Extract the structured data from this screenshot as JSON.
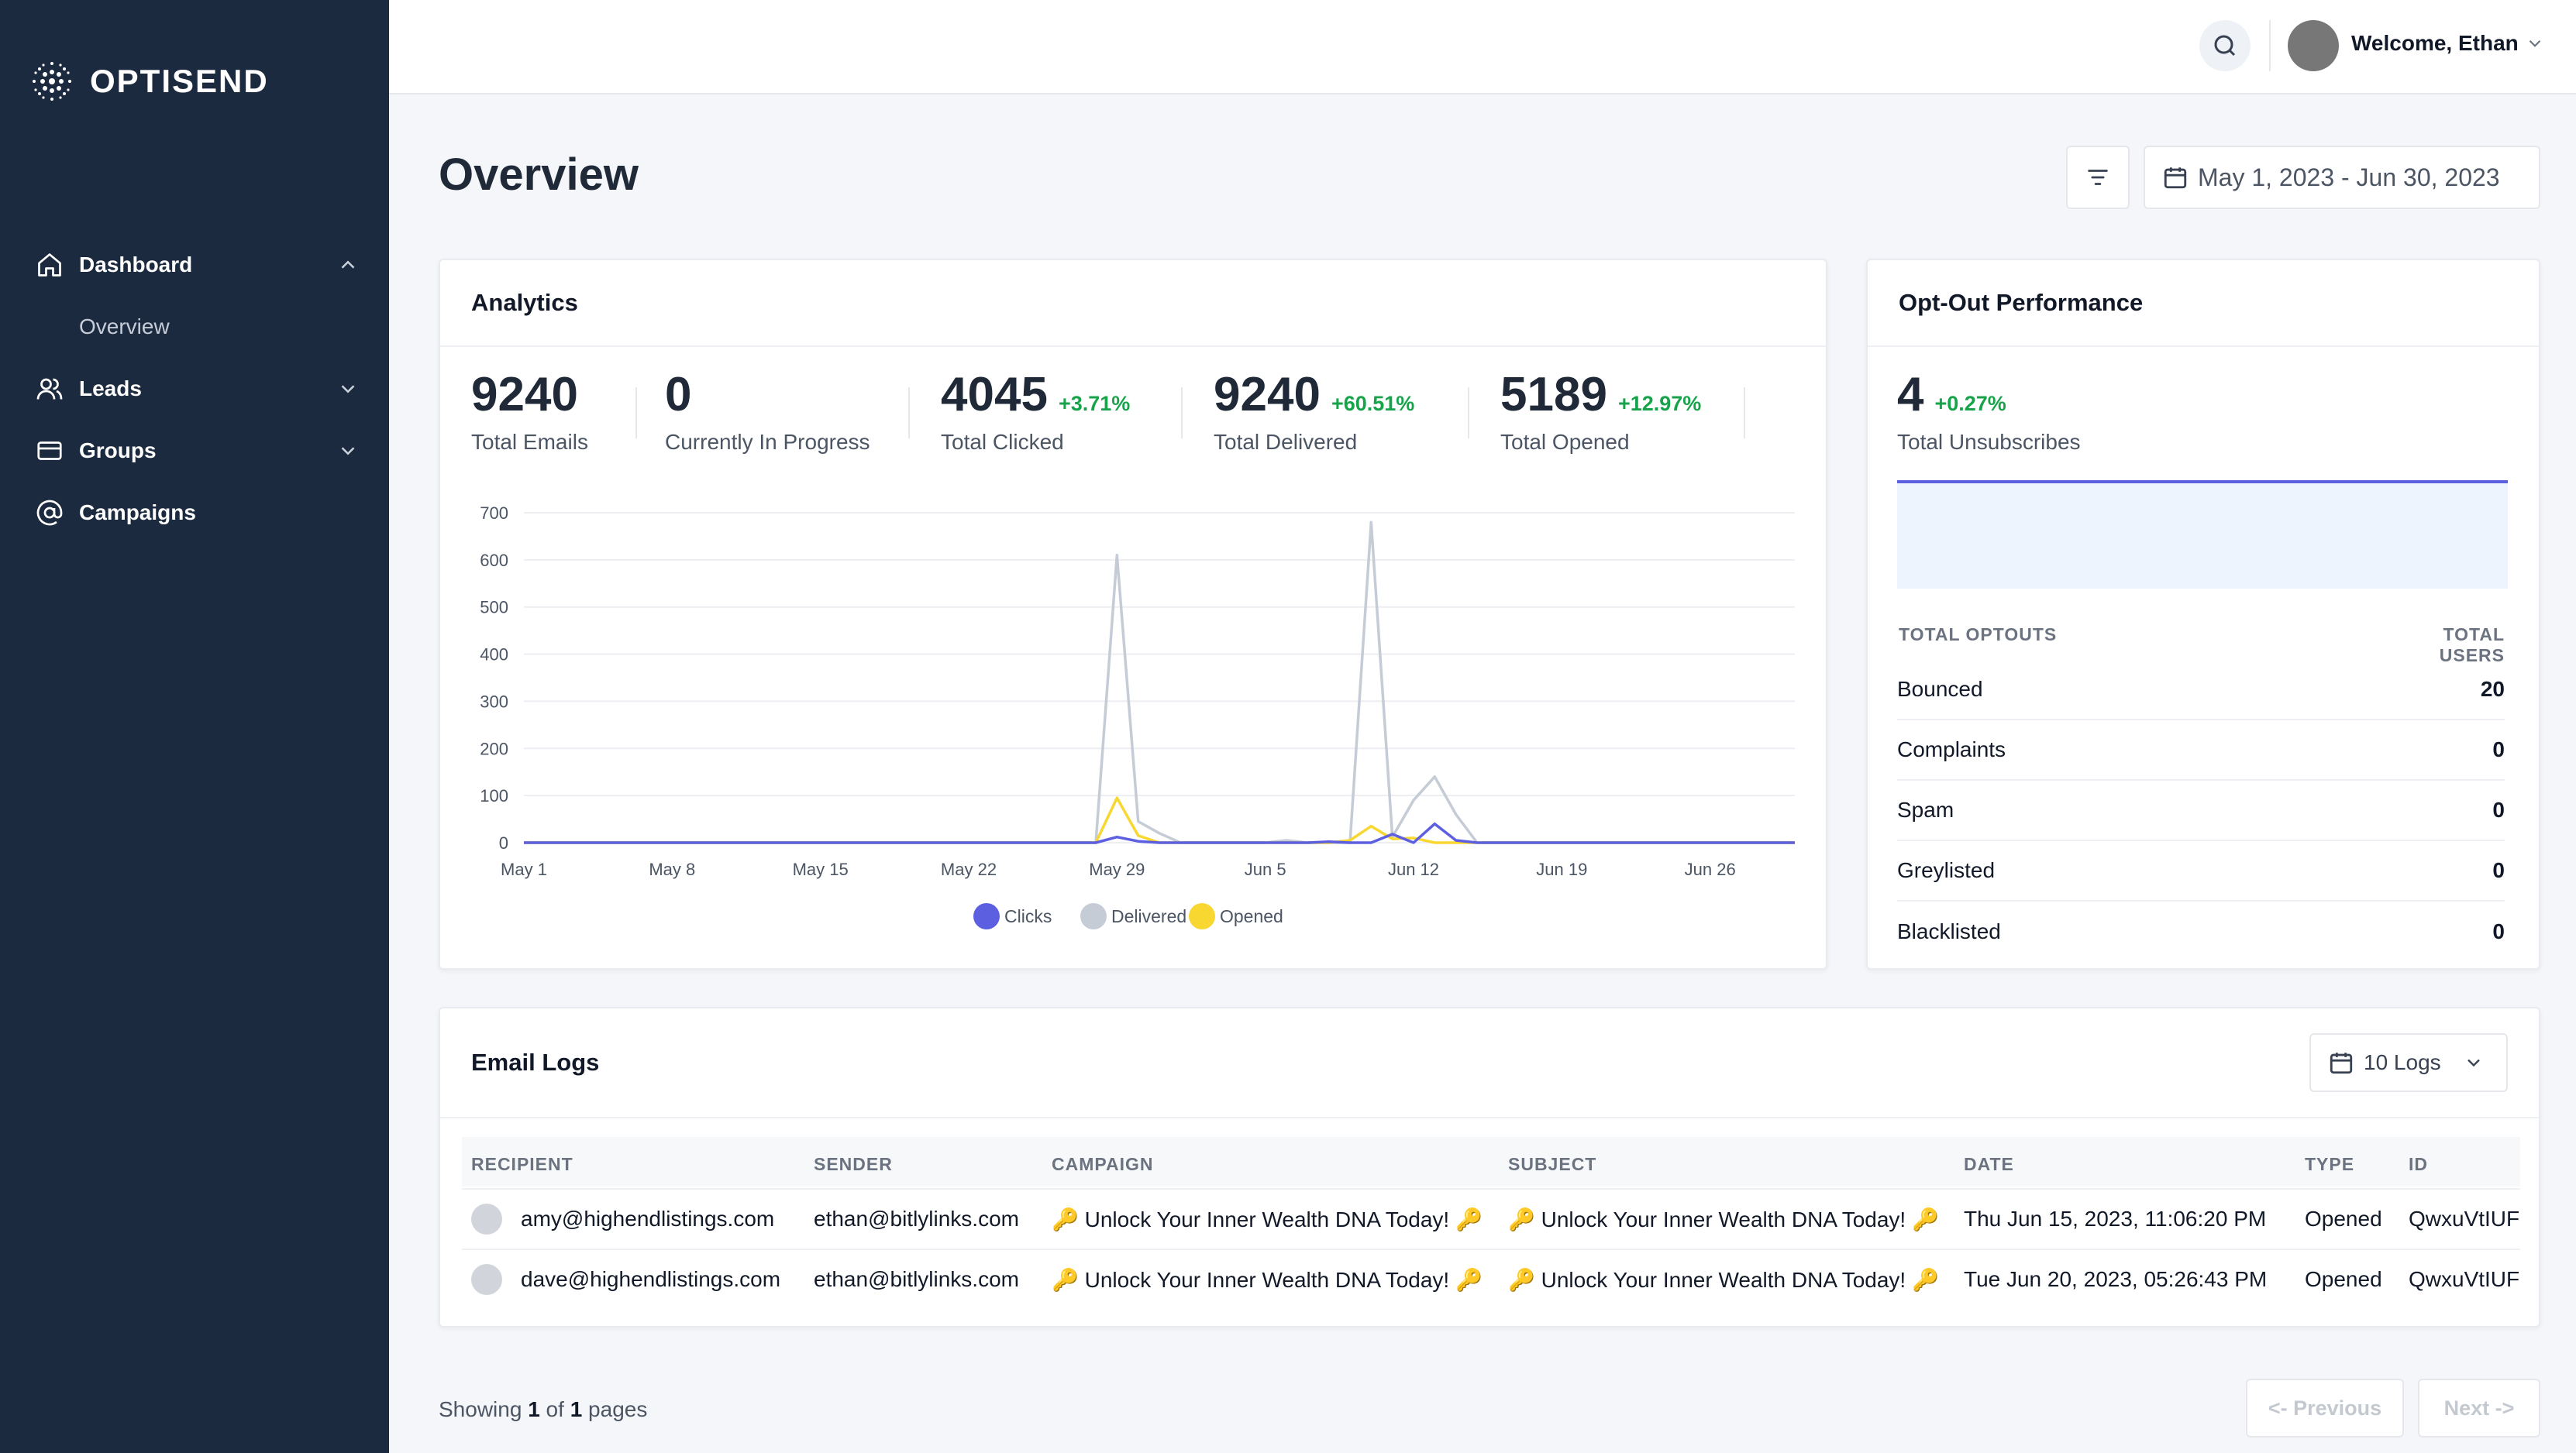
{
  "app": {
    "name": "OPTISEND"
  },
  "sidebar": {
    "items": [
      {
        "label": "Dashboard",
        "icon": "home-icon"
      },
      {
        "label": "Leads",
        "icon": "users-icon"
      },
      {
        "label": "Groups",
        "icon": "card-icon"
      },
      {
        "label": "Campaigns",
        "icon": "at-icon"
      }
    ],
    "sub_overview": "Overview"
  },
  "header": {
    "welcome": "Welcome, Ethan"
  },
  "page": {
    "title": "Overview",
    "date_range": "May 1, 2023 - Jun 30, 2023"
  },
  "analytics": {
    "title": "Analytics",
    "stats": [
      {
        "value": "9240",
        "delta": "",
        "label": "Total Emails"
      },
      {
        "value": "0",
        "delta": "",
        "label": "Currently In Progress"
      },
      {
        "value": "4045",
        "delta": "+3.71%",
        "label": "Total Clicked"
      },
      {
        "value": "9240",
        "delta": "+60.51%",
        "label": "Total Delivered"
      },
      {
        "value": "5189",
        "delta": "+12.97%",
        "label": "Total Opened"
      }
    ]
  },
  "chart_data": {
    "type": "line",
    "title": "",
    "xlabel": "",
    "ylabel": "",
    "ylim": [
      0,
      700
    ],
    "yticks": [
      "0",
      "100",
      "200",
      "300",
      "400",
      "500",
      "600",
      "700"
    ],
    "x_tick_labels": [
      "May 1",
      "May 8",
      "May 15",
      "May 22",
      "May 29",
      "Jun 5",
      "Jun 12",
      "Jun 19",
      "Jun 26"
    ],
    "x_days": [
      0,
      7,
      14,
      21,
      28,
      35,
      42,
      49,
      56
    ],
    "x_range_days": [
      0,
      60
    ],
    "legend_position": "bottom",
    "grid": true,
    "series": [
      {
        "name": "Clicks",
        "color": "#5b5fe0",
        "points": [
          [
            0,
            0
          ],
          [
            27,
            0
          ],
          [
            28,
            12
          ],
          [
            29,
            3
          ],
          [
            30,
            0
          ],
          [
            37,
            0
          ],
          [
            38,
            2
          ],
          [
            39,
            0
          ],
          [
            40,
            0
          ],
          [
            41,
            18
          ],
          [
            42,
            0
          ],
          [
            43,
            40
          ],
          [
            44,
            5
          ],
          [
            45,
            0
          ],
          [
            60,
            0
          ]
        ]
      },
      {
        "name": "Delivered",
        "color": "#c5ccd6",
        "points": [
          [
            0,
            0
          ],
          [
            27,
            0
          ],
          [
            28,
            610
          ],
          [
            29,
            45
          ],
          [
            30,
            20
          ],
          [
            31,
            0
          ],
          [
            35,
            0
          ],
          [
            36,
            5
          ],
          [
            37,
            0
          ],
          [
            39,
            0
          ],
          [
            40,
            680
          ],
          [
            41,
            12
          ],
          [
            42,
            90
          ],
          [
            43,
            140
          ],
          [
            44,
            60
          ],
          [
            45,
            0
          ],
          [
            60,
            0
          ]
        ]
      },
      {
        "name": "Opened",
        "color": "#f8d731",
        "points": [
          [
            0,
            0
          ],
          [
            27,
            0
          ],
          [
            28,
            95
          ],
          [
            29,
            15
          ],
          [
            30,
            0
          ],
          [
            38,
            0
          ],
          [
            39,
            5
          ],
          [
            40,
            35
          ],
          [
            41,
            8
          ],
          [
            42,
            10
          ],
          [
            43,
            0
          ],
          [
            60,
            0
          ]
        ]
      }
    ]
  },
  "optout": {
    "title": "Opt-Out Performance",
    "value": "4",
    "delta": "+0.27%",
    "label": "Total Unsubscribes",
    "col_left": "TOTAL OPTOUTS",
    "col_right": "TOTAL USERS",
    "rows": [
      {
        "label": "Bounced",
        "value": "20"
      },
      {
        "label": "Complaints",
        "value": "0"
      },
      {
        "label": "Spam",
        "value": "0"
      },
      {
        "label": "Greylisted",
        "value": "0"
      },
      {
        "label": "Blacklisted",
        "value": "0"
      }
    ]
  },
  "logs": {
    "title": "Email Logs",
    "select": "10 Logs",
    "columns": [
      "RECIPIENT",
      "SENDER",
      "CAMPAIGN",
      "SUBJECT",
      "DATE",
      "TYPE",
      "ID"
    ],
    "rows": [
      {
        "recipient": "amy@highendlistings.com",
        "sender": "ethan@bitlylinks.com",
        "campaign": "🔑 Unlock Your Inner Wealth DNA Today! 🔑",
        "subject": "🔑 Unlock Your Inner Wealth DNA Today! 🔑",
        "date": "Thu Jun 15, 2023, 11:06:20 PM",
        "type": "Opened",
        "id": "QwxuVtIUF"
      },
      {
        "recipient": "dave@highendlistings.com",
        "sender": "ethan@bitlylinks.com",
        "campaign": "🔑 Unlock Your Inner Wealth DNA Today! 🔑",
        "subject": "🔑 Unlock Your Inner Wealth DNA Today! 🔑",
        "date": "Tue Jun 20, 2023, 05:26:43 PM",
        "type": "Opened",
        "id": "QwxuVtIUF"
      }
    ]
  },
  "pagination": {
    "showing": "Showing",
    "current": "1",
    "of": "of",
    "total": "1",
    "pages": "pages",
    "prev": "<- Previous",
    "next": "Next ->"
  },
  "colors": {
    "sidebar": "#1c2a40",
    "accent": "#5b5fe0",
    "positive": "#16a34a"
  }
}
